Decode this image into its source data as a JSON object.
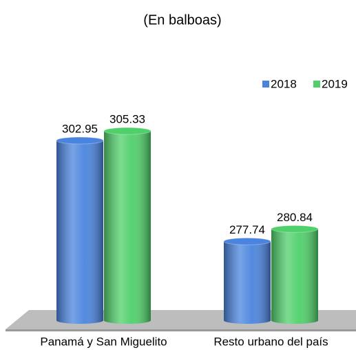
{
  "chart_data": {
    "type": "bar",
    "title": "(En balboas)",
    "categories": [
      "Panamá y San Miguelito",
      "Resto urbano del país"
    ],
    "series": [
      {
        "name": "2018",
        "color": "#4a84de",
        "values": [
          302.95,
          277.74
        ]
      },
      {
        "name": "2019",
        "color": "#4fd06a",
        "values": [
          305.33,
          280.84
        ]
      }
    ],
    "ylim": [
      258,
      310
    ]
  }
}
